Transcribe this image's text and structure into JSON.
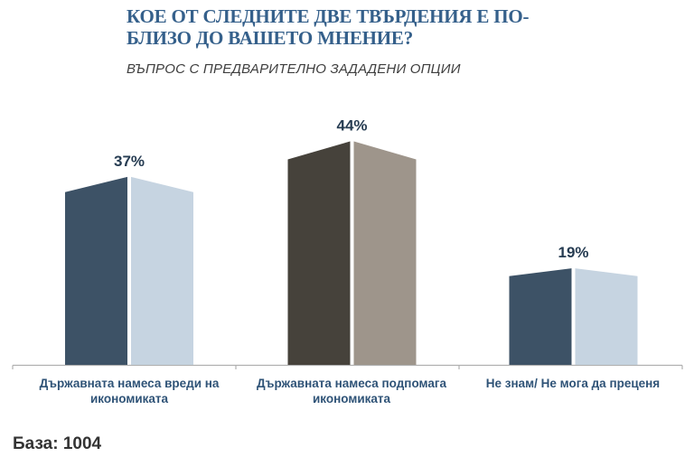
{
  "header": {
    "title_line1": "КОЕ ОТ СЛЕДНИТЕ ДВЕ ТВЪРДЕНИЯ Е ПО-",
    "title_line2": "БЛИЗО ДО ВАШЕТО МНЕНИЕ?",
    "subtitle": "ВЪПРОС С ПРЕДВАРИТЕЛНО ЗАДАДЕНИ ОПЦИИ"
  },
  "chart_data": {
    "type": "bar",
    "style": "3d-corner-view-prism-columns",
    "title": "КОЕ ОТ СЛЕДНИТЕ ДВЕ ТВЪРДЕНИЯ Е ПО-БЛИЗО ДО ВАШЕТО МНЕНИЕ?",
    "subtitle": "ВЪПРОС С ПРЕДВАРИТЕЛНО ЗАДАДЕНИ ОПЦИИ",
    "categories": [
      "Държавната намеса вреди на икономиката",
      "Държавната намеса подпомага икономиката",
      "Не знам/ Не мога да преценя"
    ],
    "values": [
      37,
      44,
      19
    ],
    "value_labels": [
      "37%",
      "44%",
      "19%"
    ],
    "unit": "%",
    "ylim": [
      0,
      50
    ],
    "grid": false,
    "legend": false,
    "axis_color": "#B0B0B0",
    "bar_colors": [
      {
        "left": "#3D5266",
        "right": "#C6D4E1"
      },
      {
        "left": "#46423B",
        "right": "#9E958B"
      },
      {
        "left": "#3D5266",
        "right": "#C6D4E1"
      }
    ]
  },
  "footer": {
    "base_label": "База: 1004"
  },
  "colors": {
    "title": "#35608B",
    "subtitle": "#3E3E3E",
    "value_label": "#263C52",
    "category_label": "#2F5377",
    "base_note": "#333333"
  }
}
